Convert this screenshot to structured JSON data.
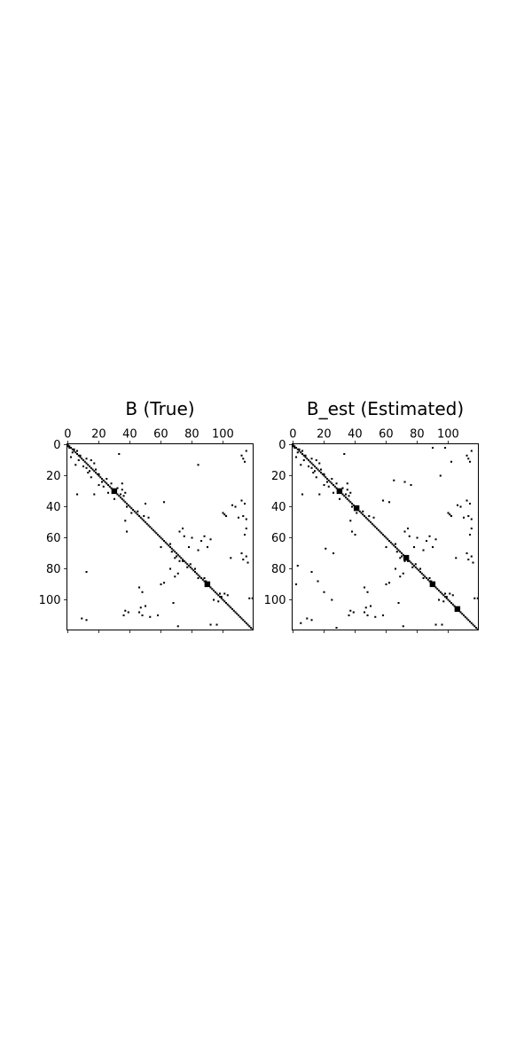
{
  "chart_data": [
    {
      "type": "heatmap",
      "title": "B (True)",
      "matrix_size": 120,
      "colormap": [
        "#ffffff",
        "#000000"
      ],
      "x_ticks": [
        0,
        20,
        40,
        60,
        80,
        100
      ],
      "y_ticks": [
        0,
        20,
        40,
        60,
        80,
        100
      ],
      "x_tick_position": "top",
      "grid": false,
      "diagonal": true,
      "blocks": [
        [
          30,
          2
        ],
        [
          90,
          2
        ]
      ],
      "nonzeros": [
        [
          1,
          0
        ],
        [
          2,
          1
        ],
        [
          3,
          4
        ],
        [
          4,
          6
        ],
        [
          5,
          3
        ],
        [
          7,
          8
        ],
        [
          9,
          12
        ],
        [
          10,
          7
        ],
        [
          10,
          15
        ],
        [
          12,
          17
        ],
        [
          14,
          10
        ],
        [
          15,
          12
        ],
        [
          16,
          18
        ],
        [
          18,
          13
        ],
        [
          19,
          20
        ],
        [
          8,
          2
        ],
        [
          13,
          5
        ],
        [
          17,
          14
        ],
        [
          21,
          15
        ],
        [
          22,
          25
        ],
        [
          24,
          22
        ],
        [
          25,
          28
        ],
        [
          27,
          23
        ],
        [
          28,
          32
        ],
        [
          29,
          35
        ],
        [
          31,
          26
        ],
        [
          32,
          34
        ],
        [
          33,
          36
        ],
        [
          35,
          30
        ],
        [
          26,
          20
        ],
        [
          6,
          33
        ],
        [
          13,
          84
        ],
        [
          32,
          6
        ],
        [
          32,
          17
        ],
        [
          34,
          34
        ],
        [
          38,
          50
        ],
        [
          37,
          62
        ],
        [
          40,
          38
        ],
        [
          43,
          45
        ],
        [
          44,
          41
        ],
        [
          46,
          49
        ],
        [
          47,
          52
        ],
        [
          49,
          37
        ],
        [
          56,
          38
        ],
        [
          44,
          100
        ],
        [
          45,
          101
        ],
        [
          46,
          102
        ],
        [
          47,
          110
        ],
        [
          46,
          113
        ],
        [
          48,
          115
        ],
        [
          40,
          108
        ],
        [
          39,
          106
        ],
        [
          38,
          114
        ],
        [
          36,
          112
        ],
        [
          54,
          115
        ],
        [
          58,
          114
        ],
        [
          54,
          74
        ],
        [
          56,
          72
        ],
        [
          59,
          75
        ],
        [
          60,
          80
        ],
        [
          59,
          88
        ],
        [
          61,
          92
        ],
        [
          62,
          86
        ],
        [
          64,
          66
        ],
        [
          66,
          60
        ],
        [
          66,
          78
        ],
        [
          66,
          90
        ],
        [
          68,
          84
        ],
        [
          69,
          67
        ],
        [
          72,
          70
        ],
        [
          73,
          69
        ],
        [
          73,
          105
        ],
        [
          75,
          74
        ],
        [
          75,
          72
        ],
        [
          77,
          79
        ],
        [
          79,
          77
        ],
        [
          80,
          82
        ],
        [
          80,
          66
        ],
        [
          82,
          12
        ],
        [
          83,
          71
        ],
        [
          85,
          69
        ],
        [
          86,
          84
        ],
        [
          86,
          88
        ],
        [
          88,
          89
        ],
        [
          89,
          62
        ],
        [
          90,
          60
        ],
        [
          92,
          46
        ],
        [
          95,
          48
        ],
        [
          96,
          98
        ],
        [
          96,
          101
        ],
        [
          97,
          103
        ],
        [
          98,
          99
        ],
        [
          99,
          119
        ],
        [
          100,
          94
        ],
        [
          101,
          97
        ],
        [
          99,
          117
        ],
        [
          102,
          68
        ],
        [
          104,
          50
        ],
        [
          105,
          47
        ],
        [
          107,
          37
        ],
        [
          108,
          39
        ],
        [
          110,
          36
        ],
        [
          108,
          46
        ],
        [
          110,
          48
        ],
        [
          110,
          58
        ],
        [
          111,
          53
        ],
        [
          112,
          9
        ],
        [
          113,
          12
        ],
        [
          116,
          92
        ],
        [
          116,
          96
        ],
        [
          117,
          71
        ],
        [
          70,
          112
        ],
        [
          72,
          115
        ],
        [
          74,
          113
        ],
        [
          76,
          116
        ],
        [
          7,
          112
        ],
        [
          9,
          113
        ],
        [
          11,
          114
        ],
        [
          4,
          115
        ],
        [
          25,
          35
        ],
        [
          31,
          37
        ]
      ]
    },
    {
      "type": "heatmap",
      "title": "B_est (Estimated)",
      "matrix_size": 120,
      "colormap": [
        "#ffffff",
        "#000000"
      ],
      "x_ticks": [
        0,
        20,
        40,
        60,
        80,
        100
      ],
      "y_ticks": [
        0,
        20,
        40,
        60,
        80,
        100
      ],
      "x_tick_position": "top",
      "grid": false,
      "diagonal": true,
      "blocks": [
        [
          30,
          2
        ],
        [
          41,
          2
        ],
        [
          73,
          2
        ],
        [
          90,
          2
        ],
        [
          106,
          2
        ]
      ],
      "nonzeros": [
        [
          1,
          0
        ],
        [
          2,
          1
        ],
        [
          3,
          4
        ],
        [
          4,
          6
        ],
        [
          5,
          3
        ],
        [
          7,
          8
        ],
        [
          9,
          12
        ],
        [
          10,
          7
        ],
        [
          10,
          15
        ],
        [
          12,
          17
        ],
        [
          14,
          10
        ],
        [
          15,
          12
        ],
        [
          16,
          18
        ],
        [
          18,
          13
        ],
        [
          19,
          20
        ],
        [
          8,
          2
        ],
        [
          13,
          5
        ],
        [
          17,
          14
        ],
        [
          21,
          15
        ],
        [
          22,
          25
        ],
        [
          24,
          22
        ],
        [
          25,
          28
        ],
        [
          27,
          23
        ],
        [
          28,
          32
        ],
        [
          29,
          35
        ],
        [
          31,
          26
        ],
        [
          32,
          34
        ],
        [
          33,
          36
        ],
        [
          35,
          30
        ],
        [
          26,
          20
        ],
        [
          6,
          33
        ],
        [
          2,
          90
        ],
        [
          2,
          98
        ],
        [
          11,
          102
        ],
        [
          20,
          95
        ],
        [
          23,
          65
        ],
        [
          24,
          72
        ],
        [
          26,
          76
        ],
        [
          32,
          6
        ],
        [
          32,
          17
        ],
        [
          34,
          34
        ],
        [
          36,
          58
        ],
        [
          37,
          62
        ],
        [
          40,
          38
        ],
        [
          43,
          45
        ],
        [
          44,
          41
        ],
        [
          46,
          49
        ],
        [
          47,
          52
        ],
        [
          49,
          37
        ],
        [
          56,
          38
        ],
        [
          58,
          40
        ],
        [
          44,
          100
        ],
        [
          45,
          101
        ],
        [
          46,
          102
        ],
        [
          47,
          110
        ],
        [
          46,
          113
        ],
        [
          48,
          115
        ],
        [
          40,
          108
        ],
        [
          39,
          106
        ],
        [
          38,
          114
        ],
        [
          36,
          112
        ],
        [
          54,
          115
        ],
        [
          58,
          114
        ],
        [
          54,
          74
        ],
        [
          56,
          72
        ],
        [
          59,
          75
        ],
        [
          60,
          80
        ],
        [
          59,
          88
        ],
        [
          61,
          92
        ],
        [
          62,
          86
        ],
        [
          64,
          66
        ],
        [
          66,
          60
        ],
        [
          66,
          78
        ],
        [
          66,
          90
        ],
        [
          68,
          84
        ],
        [
          69,
          67
        ],
        [
          72,
          70
        ],
        [
          73,
          69
        ],
        [
          73,
          105
        ],
        [
          75,
          74
        ],
        [
          75,
          72
        ],
        [
          77,
          79
        ],
        [
          79,
          77
        ],
        [
          80,
          82
        ],
        [
          80,
          66
        ],
        [
          82,
          12
        ],
        [
          83,
          71
        ],
        [
          85,
          69
        ],
        [
          86,
          84
        ],
        [
          86,
          88
        ],
        [
          88,
          89
        ],
        [
          89,
          62
        ],
        [
          90,
          60
        ],
        [
          92,
          46
        ],
        [
          95,
          48
        ],
        [
          96,
          98
        ],
        [
          96,
          101
        ],
        [
          97,
          103
        ],
        [
          98,
          99
        ],
        [
          99,
          119
        ],
        [
          100,
          94
        ],
        [
          101,
          97
        ],
        [
          99,
          117
        ],
        [
          102,
          68
        ],
        [
          104,
          50
        ],
        [
          105,
          47
        ],
        [
          107,
          37
        ],
        [
          108,
          39
        ],
        [
          110,
          36
        ],
        [
          108,
          46
        ],
        [
          110,
          48
        ],
        [
          110,
          58
        ],
        [
          111,
          53
        ],
        [
          112,
          9
        ],
        [
          113,
          12
        ],
        [
          116,
          92
        ],
        [
          116,
          96
        ],
        [
          117,
          71
        ],
        [
          90,
          2
        ],
        [
          95,
          20
        ],
        [
          78,
          3
        ],
        [
          88,
          16
        ],
        [
          100,
          25
        ],
        [
          67,
          21
        ],
        [
          70,
          26
        ],
        [
          115,
          5
        ],
        [
          118,
          28
        ],
        [
          70,
          112
        ],
        [
          72,
          115
        ],
        [
          74,
          113
        ],
        [
          76,
          116
        ],
        [
          7,
          112
        ],
        [
          9,
          113
        ],
        [
          11,
          114
        ],
        [
          4,
          115
        ],
        [
          25,
          35
        ],
        [
          31,
          37
        ]
      ]
    }
  ]
}
